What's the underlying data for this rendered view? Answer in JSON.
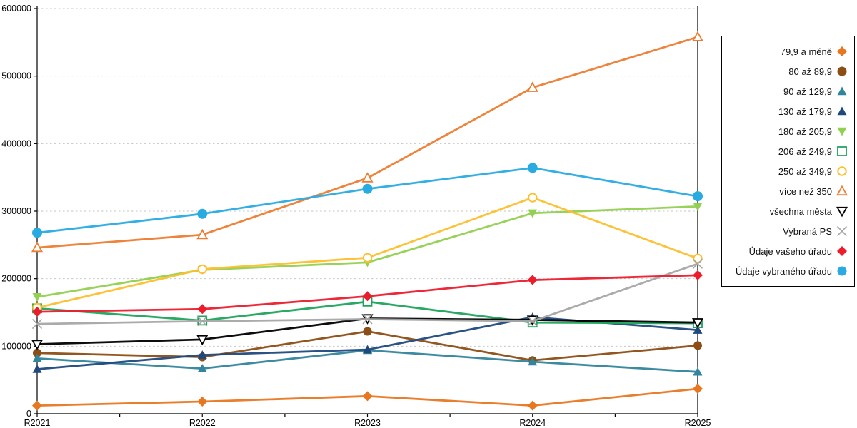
{
  "chart_data": {
    "type": "line",
    "title": "",
    "categories": [
      "R2021",
      "R2022",
      "R2023",
      "R2024",
      "R2025"
    ],
    "ylim": [
      0,
      600000
    ],
    "ytick_step": 100000,
    "yticks": [
      "0",
      "100000",
      "200000",
      "300000",
      "400000",
      "500000",
      "600000"
    ],
    "grid": "horizontal-dashed",
    "grid_color": "#C6C6C6",
    "axis_color": "#000000",
    "legend_position": "right",
    "series": [
      {
        "name": "79,9 a méně",
        "color": "#E87722",
        "marker": "diamond",
        "fill": "solid",
        "values": [
          12000,
          18000,
          26000,
          12000,
          37000
        ]
      },
      {
        "name": "80 až 89,9",
        "color": "#8C4E15",
        "marker": "circle",
        "fill": "solid",
        "values": [
          90000,
          84000,
          122000,
          79000,
          101000
        ]
      },
      {
        "name": "90 až 129,9",
        "color": "#31859C",
        "marker": "triangle-up",
        "fill": "solid",
        "values": [
          82000,
          67000,
          94000,
          77000,
          62000
        ]
      },
      {
        "name": "130 až 179,9",
        "color": "#1F497D",
        "marker": "triangle-up",
        "fill": "solid",
        "values": [
          66000,
          87000,
          95000,
          143000,
          124000
        ]
      },
      {
        "name": "180 až 205,9",
        "color": "#92D050",
        "marker": "triangle-down",
        "fill": "solid",
        "values": [
          173000,
          213000,
          224000,
          297000,
          307000
        ]
      },
      {
        "name": "206 až 249,9",
        "color": "#1DA45C",
        "marker": "square",
        "fill": "open",
        "values": [
          156000,
          138000,
          166000,
          135000,
          134000
        ]
      },
      {
        "name": "250 až 349,9",
        "color": "#FCC02E",
        "marker": "circle",
        "fill": "open",
        "values": [
          157000,
          214000,
          231000,
          320000,
          230000
        ]
      },
      {
        "name": "více než 350",
        "color": "#ED7D31",
        "marker": "triangle-up",
        "fill": "open",
        "values": [
          246000,
          265000,
          349000,
          483000,
          558000
        ]
      },
      {
        "name": "všechna města",
        "color": "#000000",
        "marker": "triangle-down",
        "fill": "open",
        "values": [
          103000,
          110000,
          141000,
          139000,
          135000
        ]
      },
      {
        "name": "Vybraná PS",
        "color": "#A6A6A6",
        "marker": "x",
        "fill": "open",
        "values": [
          133000,
          137000,
          140000,
          137000,
          222000
        ]
      },
      {
        "name": "Údaje vašeho úřadu",
        "color": "#EC1C2D",
        "marker": "diamond",
        "fill": "solid",
        "values": [
          151000,
          155000,
          174000,
          198000,
          205000
        ]
      },
      {
        "name": "Údaje vybraného úřadu",
        "color": "#29ABE2",
        "marker": "circle",
        "fill": "solid",
        "values": [
          268000,
          296000,
          333000,
          364000,
          322000
        ]
      }
    ]
  }
}
